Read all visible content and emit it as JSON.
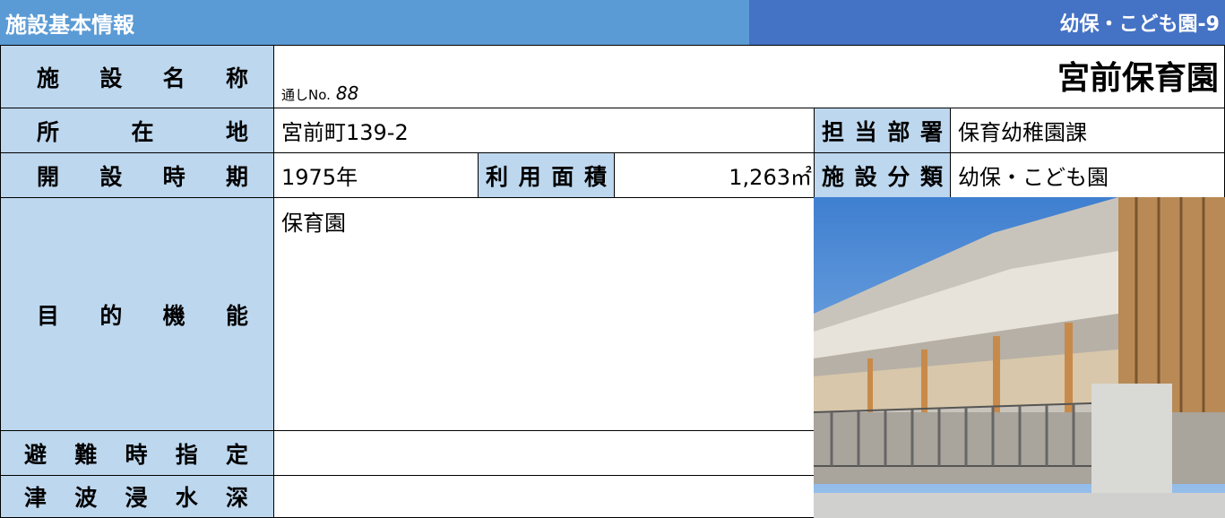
{
  "header": {
    "title": "施設基本情報",
    "code": "幼保・こども園-9"
  },
  "rows": {
    "name": {
      "label": "施設名称",
      "serial_label": "通しNo.",
      "serial": 88,
      "value": "宮前保育園"
    },
    "location": {
      "label": "所在地",
      "value": "宮前町139-2",
      "dept_label": "担当部署",
      "dept": "保育幼稚園課"
    },
    "opening": {
      "label": "開設時期",
      "value": "1975年",
      "area_label": "利用面積",
      "area": "1,263㎡",
      "category_label": "施設分類",
      "category": "幼保・こども園"
    },
    "purpose": {
      "label": "目的機能",
      "value": "保育園"
    },
    "evacuation": {
      "label": "避難時指定"
    },
    "tsunami": {
      "label": "津波浸水深"
    }
  }
}
